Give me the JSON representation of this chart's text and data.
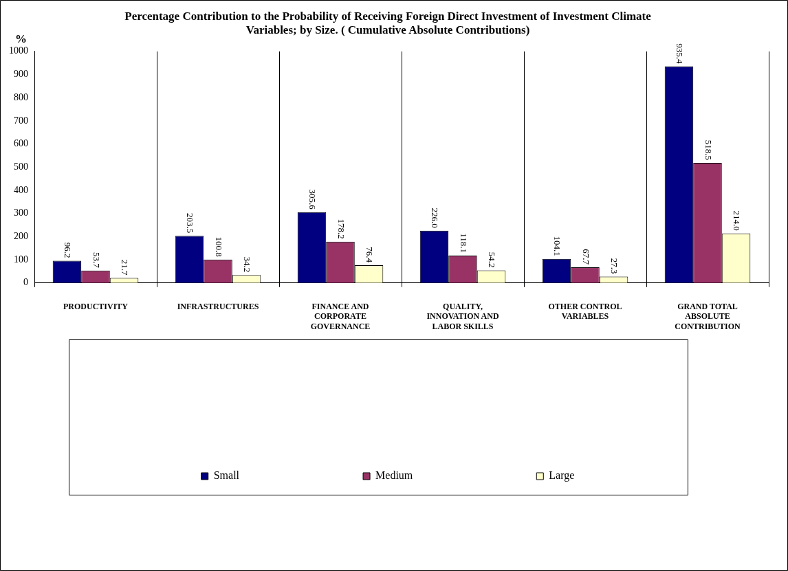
{
  "chart_data": {
    "type": "bar",
    "title": "Percentage Contribution to the Probability of Receiving Foreign Direct Investment of Investment Climate Variables; by Size. ( Cumulative Absolute Contributions)",
    "ylabel": "%",
    "categories": [
      "PRODUCTIVITY",
      "INFRASTRUCTURES",
      "FINANCE AND CORPORATE GOVERNANCE",
      "QUALITY, INNOVATION AND LABOR SKILLS",
      "OTHER CONTROL VARIABLES",
      "GRAND TOTAL ABSOLUTE CONTRIBUTION"
    ],
    "series": [
      {
        "name": "Small",
        "color": "#000080",
        "values": [
          96.2,
          203.5,
          305.6,
          226.0,
          104.1,
          935.4
        ],
        "value_labels": [
          "96.2",
          "203.5",
          "305.6",
          "226.0",
          "104.1",
          "935.4"
        ]
      },
      {
        "name": "Medium",
        "color": "#993366",
        "values": [
          53.7,
          100.8,
          178.2,
          118.1,
          67.7,
          518.5
        ],
        "value_labels": [
          "53.7",
          "100.8",
          "178.2",
          "118.1",
          "67.7",
          "518.5"
        ]
      },
      {
        "name": "Large",
        "color": "#ffffcc",
        "values": [
          21.7,
          34.2,
          76.4,
          54.2,
          27.3,
          214.0
        ],
        "value_labels": [
          "21.7",
          "34.2",
          "76.4",
          "54.2",
          "27.3",
          "214.0"
        ]
      }
    ],
    "ylim": [
      0,
      1000
    ],
    "yticks": [
      0,
      100,
      200,
      300,
      400,
      500,
      600,
      700,
      800,
      900,
      1000
    ],
    "grid": "x",
    "legend": "bottom"
  }
}
